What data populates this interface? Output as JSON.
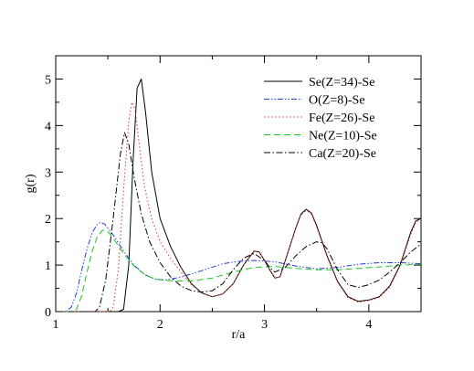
{
  "chart_data": {
    "type": "line",
    "title": "",
    "xlabel": "r/a",
    "ylabel": "g(r)",
    "xlim": [
      1,
      4.5
    ],
    "ylim": [
      0,
      5.5
    ],
    "x_ticks": [
      "1",
      "2",
      "3",
      "4"
    ],
    "y_ticks": [
      "0",
      "1",
      "2",
      "3",
      "4",
      "5"
    ],
    "grid": false,
    "legend_position": "top-right",
    "series": [
      {
        "name": "Se(Z=34)-Se",
        "color": "#000000",
        "dash": "solid",
        "points": [
          [
            1.0,
            0
          ],
          [
            1.6,
            0
          ],
          [
            1.65,
            0.05
          ],
          [
            1.7,
            1.0
          ],
          [
            1.74,
            3.2
          ],
          [
            1.78,
            4.8
          ],
          [
            1.82,
            5.0
          ],
          [
            1.86,
            4.3
          ],
          [
            1.92,
            3.0
          ],
          [
            2.0,
            2.0
          ],
          [
            2.1,
            1.4
          ],
          [
            2.2,
            0.95
          ],
          [
            2.3,
            0.6
          ],
          [
            2.4,
            0.4
          ],
          [
            2.5,
            0.32
          ],
          [
            2.6,
            0.38
          ],
          [
            2.7,
            0.6
          ],
          [
            2.8,
            1.0
          ],
          [
            2.9,
            1.3
          ],
          [
            2.95,
            1.28
          ],
          [
            3.0,
            1.1
          ],
          [
            3.05,
            0.9
          ],
          [
            3.1,
            0.72
          ],
          [
            3.15,
            0.75
          ],
          [
            3.2,
            1.1
          ],
          [
            3.3,
            1.8
          ],
          [
            3.35,
            2.1
          ],
          [
            3.4,
            2.2
          ],
          [
            3.45,
            2.12
          ],
          [
            3.5,
            1.85
          ],
          [
            3.6,
            1.2
          ],
          [
            3.7,
            0.65
          ],
          [
            3.8,
            0.32
          ],
          [
            3.9,
            0.22
          ],
          [
            4.0,
            0.25
          ],
          [
            4.1,
            0.32
          ],
          [
            4.2,
            0.55
          ],
          [
            4.3,
            1.0
          ],
          [
            4.4,
            1.7
          ],
          [
            4.45,
            1.95
          ],
          [
            4.5,
            2.0
          ]
        ]
      },
      {
        "name": "O(Z=8)-Se",
        "color": "#1f3fd8",
        "dash": "dashdotdot",
        "points": [
          [
            1.0,
            0
          ],
          [
            1.1,
            0
          ],
          [
            1.15,
            0.1
          ],
          [
            1.2,
            0.4
          ],
          [
            1.25,
            0.9
          ],
          [
            1.3,
            1.35
          ],
          [
            1.35,
            1.7
          ],
          [
            1.4,
            1.88
          ],
          [
            1.43,
            1.92
          ],
          [
            1.47,
            1.88
          ],
          [
            1.55,
            1.65
          ],
          [
            1.65,
            1.3
          ],
          [
            1.75,
            1.0
          ],
          [
            1.85,
            0.8
          ],
          [
            1.95,
            0.7
          ],
          [
            2.05,
            0.68
          ],
          [
            2.2,
            0.74
          ],
          [
            2.4,
            0.88
          ],
          [
            2.6,
            1.03
          ],
          [
            2.75,
            1.08
          ],
          [
            2.9,
            1.1
          ],
          [
            3.1,
            1.07
          ],
          [
            3.3,
            0.98
          ],
          [
            3.5,
            0.92
          ],
          [
            3.7,
            0.95
          ],
          [
            3.9,
            1.02
          ],
          [
            4.1,
            1.05
          ],
          [
            4.3,
            1.05
          ],
          [
            4.5,
            1.03
          ]
        ]
      },
      {
        "name": "Fe(Z=26)-Se",
        "color": "#e8321e",
        "dash": "dotted",
        "points": [
          [
            1.0,
            0
          ],
          [
            1.52,
            0
          ],
          [
            1.55,
            0.1
          ],
          [
            1.6,
            0.9
          ],
          [
            1.65,
            2.6
          ],
          [
            1.7,
            4.1
          ],
          [
            1.73,
            4.5
          ],
          [
            1.76,
            4.35
          ],
          [
            1.8,
            3.6
          ],
          [
            1.85,
            2.7
          ],
          [
            1.92,
            2.0
          ],
          [
            2.0,
            1.5
          ],
          [
            2.1,
            1.15
          ],
          [
            2.2,
            0.85
          ],
          [
            2.3,
            0.58
          ],
          [
            2.4,
            0.4
          ],
          [
            2.5,
            0.32
          ],
          [
            2.6,
            0.38
          ],
          [
            2.7,
            0.6
          ],
          [
            2.8,
            1.0
          ],
          [
            2.9,
            1.3
          ],
          [
            2.95,
            1.28
          ],
          [
            3.0,
            1.1
          ],
          [
            3.05,
            0.9
          ],
          [
            3.1,
            0.72
          ],
          [
            3.15,
            0.75
          ],
          [
            3.2,
            1.1
          ],
          [
            3.3,
            1.8
          ],
          [
            3.35,
            2.08
          ],
          [
            3.4,
            2.17
          ],
          [
            3.45,
            2.1
          ],
          [
            3.5,
            1.82
          ],
          [
            3.6,
            1.18
          ],
          [
            3.7,
            0.63
          ],
          [
            3.8,
            0.3
          ],
          [
            3.9,
            0.2
          ],
          [
            4.0,
            0.24
          ],
          [
            4.1,
            0.3
          ],
          [
            4.2,
            0.52
          ],
          [
            4.3,
            0.98
          ],
          [
            4.4,
            1.65
          ],
          [
            4.45,
            1.92
          ],
          [
            4.5,
            1.98
          ]
        ]
      },
      {
        "name": "Ne(Z=10)-Se",
        "color": "#18c81e",
        "dash": "dashed",
        "points": [
          [
            1.0,
            0
          ],
          [
            1.15,
            0
          ],
          [
            1.2,
            0.05
          ],
          [
            1.25,
            0.35
          ],
          [
            1.3,
            0.85
          ],
          [
            1.35,
            1.3
          ],
          [
            1.4,
            1.62
          ],
          [
            1.45,
            1.75
          ],
          [
            1.5,
            1.72
          ],
          [
            1.55,
            1.58
          ],
          [
            1.65,
            1.25
          ],
          [
            1.75,
            0.98
          ],
          [
            1.85,
            0.8
          ],
          [
            1.95,
            0.7
          ],
          [
            2.1,
            0.66
          ],
          [
            2.3,
            0.66
          ],
          [
            2.5,
            0.72
          ],
          [
            2.7,
            0.85
          ],
          [
            2.9,
            0.95
          ],
          [
            3.1,
            0.97
          ],
          [
            3.3,
            0.93
          ],
          [
            3.5,
            0.9
          ],
          [
            3.7,
            0.9
          ],
          [
            3.9,
            0.93
          ],
          [
            4.1,
            0.96
          ],
          [
            4.3,
            1.0
          ],
          [
            4.5,
            1.02
          ]
        ]
      },
      {
        "name": "Ca(Z=20)-Se",
        "color": "#000000",
        "dash": "dashdot",
        "points": [
          [
            1.0,
            0
          ],
          [
            1.38,
            0
          ],
          [
            1.42,
            0.1
          ],
          [
            1.48,
            0.7
          ],
          [
            1.55,
            2.0
          ],
          [
            1.62,
            3.4
          ],
          [
            1.66,
            3.85
          ],
          [
            1.7,
            3.6
          ],
          [
            1.75,
            2.9
          ],
          [
            1.82,
            2.1
          ],
          [
            1.9,
            1.5
          ],
          [
            2.0,
            1.05
          ],
          [
            2.1,
            0.75
          ],
          [
            2.2,
            0.55
          ],
          [
            2.3,
            0.45
          ],
          [
            2.4,
            0.42
          ],
          [
            2.5,
            0.45
          ],
          [
            2.6,
            0.6
          ],
          [
            2.7,
            0.9
          ],
          [
            2.8,
            1.15
          ],
          [
            2.9,
            1.25
          ],
          [
            3.0,
            1.1
          ],
          [
            3.05,
            0.95
          ],
          [
            3.1,
            0.85
          ],
          [
            3.2,
            0.95
          ],
          [
            3.3,
            1.2
          ],
          [
            3.4,
            1.4
          ],
          [
            3.5,
            1.5
          ],
          [
            3.55,
            1.48
          ],
          [
            3.6,
            1.35
          ],
          [
            3.7,
            0.9
          ],
          [
            3.8,
            0.58
          ],
          [
            3.9,
            0.52
          ],
          [
            4.0,
            0.58
          ],
          [
            4.1,
            0.68
          ],
          [
            4.2,
            0.85
          ],
          [
            4.3,
            1.05
          ],
          [
            4.4,
            1.28
          ],
          [
            4.5,
            1.45
          ]
        ]
      }
    ]
  }
}
